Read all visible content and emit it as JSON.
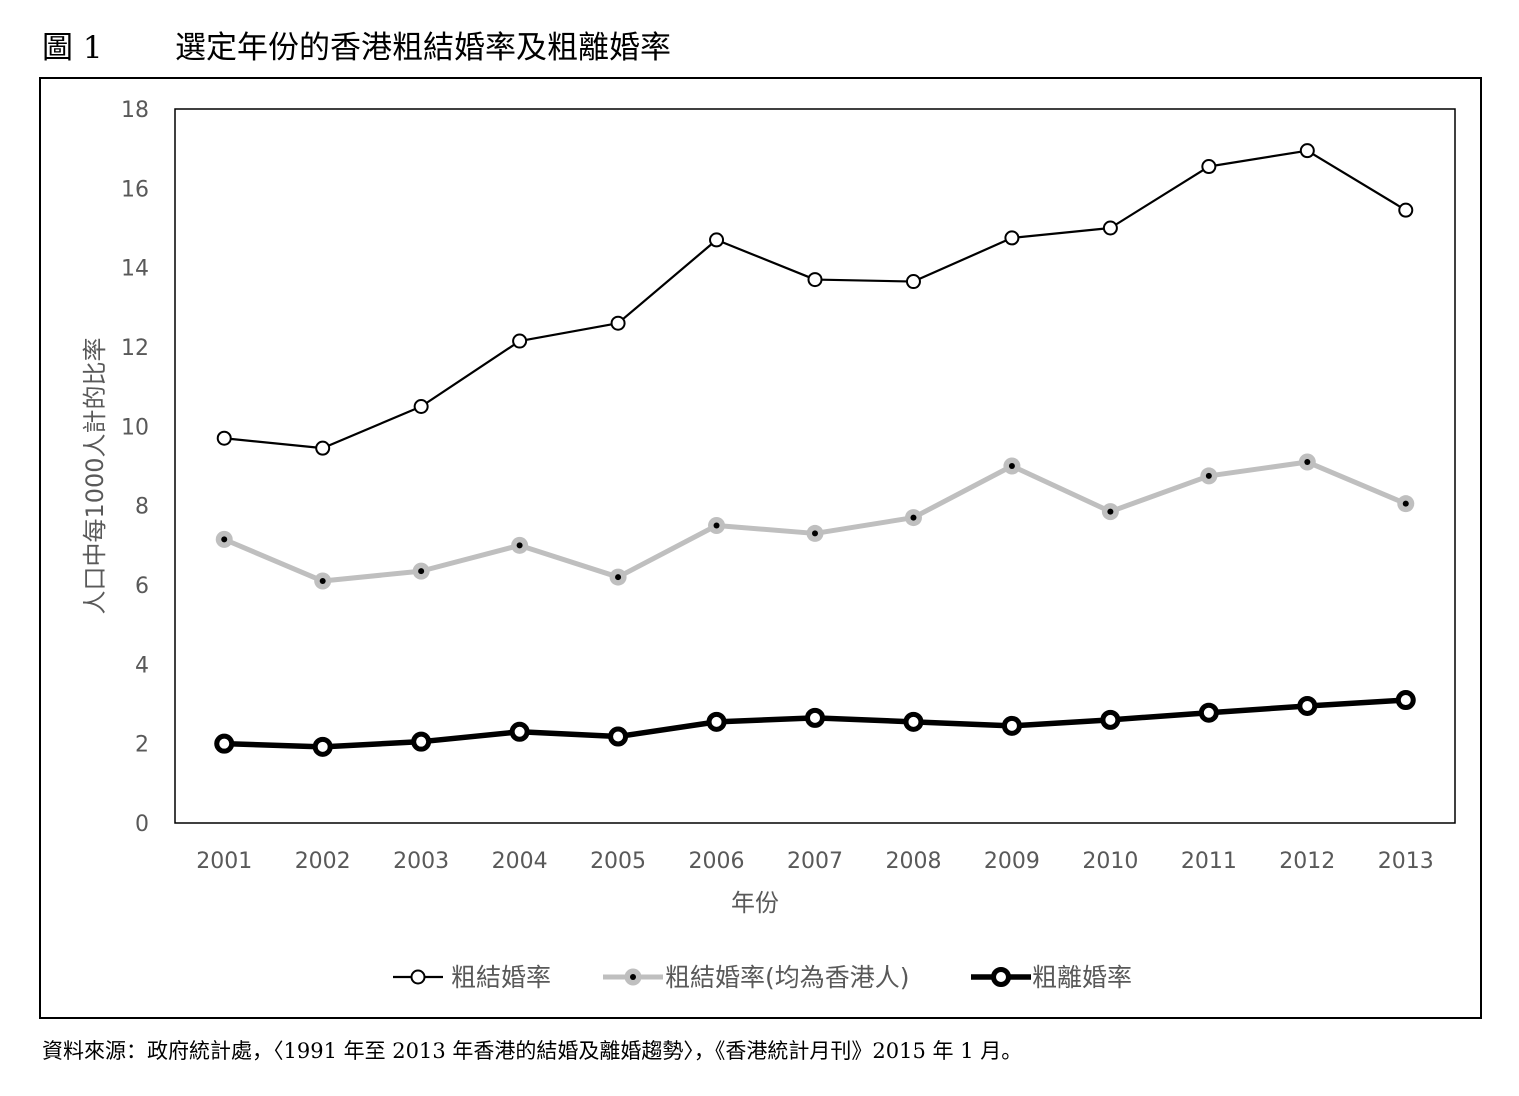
{
  "figure": {
    "label": "圖 1",
    "title": "選定年份的香港粗結婚率及粗離婚率"
  },
  "source": "資料來源：政府統計處，〈1991 年至 2013 年香港的結婚及離婚趨勢〉，《香港統計月刊》2015 年 1 月。",
  "chart_data": {
    "type": "line",
    "xlabel": "年份",
    "ylabel": "人口中每1000人計的比率",
    "ylim": [
      0,
      18
    ],
    "yticks": [
      "0",
      "2",
      "4",
      "6",
      "8",
      "10",
      "12",
      "14",
      "16",
      "18"
    ],
    "categories": [
      "2001",
      "2002",
      "2003",
      "2004",
      "2005",
      "2006",
      "2007",
      "2008",
      "2009",
      "2010",
      "2011",
      "2012",
      "2013"
    ],
    "legend_position": "bottom",
    "grid": false,
    "series": [
      {
        "name": "粗結婚率",
        "color": "#000000",
        "marker": "hollow-circle",
        "values": [
          9.7,
          9.45,
          10.5,
          12.15,
          12.6,
          14.7,
          13.7,
          13.65,
          14.75,
          15.0,
          16.55,
          16.95,
          15.45
        ]
      },
      {
        "name": "粗結婚率(均為香港人)",
        "color": "#bfbfbf",
        "marker": "dot-circle",
        "values": [
          7.15,
          6.1,
          6.35,
          7.0,
          6.2,
          7.5,
          7.3,
          7.7,
          9.0,
          7.85,
          8.75,
          9.1,
          8.05
        ]
      },
      {
        "name": "粗離婚率",
        "color": "#000000",
        "marker": "bold-circle",
        "values": [
          2.0,
          1.92,
          2.05,
          2.3,
          2.18,
          2.55,
          2.65,
          2.55,
          2.45,
          2.6,
          2.78,
          2.95,
          3.1
        ]
      }
    ]
  }
}
